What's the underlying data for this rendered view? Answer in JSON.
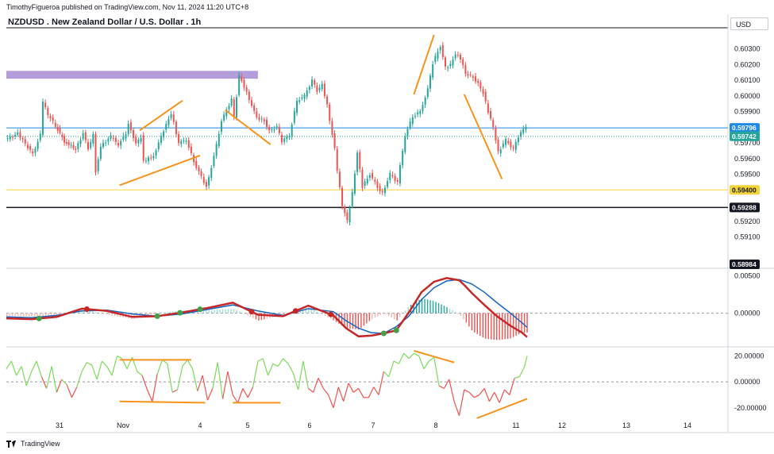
{
  "header": {
    "publisher": "TimothyFigueroa published on TradingView.com, Nov 11, 2024 11:20 UTC+8",
    "symbol_title": "NZDUSD . New Zealand Dollar / U.S. Dollar . 1h",
    "currency": "USD"
  },
  "footer": {
    "brand": "TradingView",
    "brand_icon": "tradingview-logo-icon"
  },
  "colors": {
    "up": "#26a69a",
    "down": "#ef5350",
    "annotation": "#f7931a",
    "zone": "#b39ddb",
    "yellow_line": "#f5d33b",
    "last_price": "#1e88e5",
    "signal": "#1565c0",
    "macd": "#c62828",
    "macd_rising": "#43a047",
    "osc_up": "#7cdb5a",
    "osc_down": "#ef5350"
  },
  "chart_data": [
    {
      "type": "candlestick",
      "pane": "price",
      "x_tick_labels": [
        "31",
        "Nov",
        "4",
        "5",
        "6",
        "7",
        "8",
        "11",
        "12",
        "13",
        "14"
      ],
      "y_tick_labels": [
        "0.60300",
        "0.60200",
        "0.60100",
        "0.60000",
        "0.59900",
        "0.59700",
        "0.59600",
        "0.59500",
        "0.59200",
        "0.59100"
      ],
      "ylim": [
        0.589,
        0.6043
      ],
      "price_labels": [
        {
          "text": "0.59796",
          "value": 0.59796,
          "role": "last-price"
        },
        {
          "text": "0.59742",
          "value": 0.59742,
          "role": "current"
        },
        {
          "text": "0.59400",
          "value": 0.594,
          "role": "support"
        },
        {
          "text": "0.59288",
          "value": 0.59288,
          "role": "level"
        },
        {
          "text": "0.58984",
          "value": 0.58984,
          "role": "low"
        }
      ],
      "path": [
        [
          0,
          0.5972
        ],
        [
          10,
          0.5976
        ],
        [
          22,
          0.5963
        ],
        [
          28,
          0.5975
        ],
        [
          30,
          0.5996
        ],
        [
          34,
          0.5988
        ],
        [
          40,
          0.5981
        ],
        [
          47,
          0.5971
        ],
        [
          56,
          0.5966
        ],
        [
          62,
          0.5976
        ],
        [
          66,
          0.5966
        ],
        [
          70,
          0.5975
        ],
        [
          72,
          0.5952
        ],
        [
          76,
          0.5968
        ],
        [
          84,
          0.5974
        ],
        [
          90,
          0.5969
        ],
        [
          96,
          0.5976
        ],
        [
          98,
          0.5983
        ],
        [
          104,
          0.5969
        ],
        [
          108,
          0.5974
        ],
        [
          110,
          0.5958
        ],
        [
          118,
          0.5962
        ],
        [
          128,
          0.5982
        ],
        [
          132,
          0.5989
        ],
        [
          138,
          0.597
        ],
        [
          144,
          0.5972
        ],
        [
          150,
          0.5958
        ],
        [
          160,
          0.5942
        ],
        [
          166,
          0.5961
        ],
        [
          172,
          0.5984
        ],
        [
          180,
          0.5998
        ],
        [
          182,
          0.5987
        ],
        [
          186,
          0.6013
        ],
        [
          190,
          0.6006
        ],
        [
          196,
          0.5994
        ],
        [
          200,
          0.5986
        ],
        [
          206,
          0.5984
        ],
        [
          210,
          0.5978
        ],
        [
          216,
          0.598
        ],
        [
          220,
          0.5971
        ],
        [
          226,
          0.5975
        ],
        [
          232,
          0.5997
        ],
        [
          238,
          0.6
        ],
        [
          244,
          0.601
        ],
        [
          248,
          0.6003
        ],
        [
          252,
          0.6007
        ],
        [
          256,
          0.5994
        ],
        [
          262,
          0.5966
        ],
        [
          264,
          0.5952
        ],
        [
          268,
          0.593
        ],
        [
          272,
          0.592
        ],
        [
          276,
          0.5938
        ],
        [
          280,
          0.5964
        ],
        [
          284,
          0.5942
        ],
        [
          290,
          0.595
        ],
        [
          296,
          0.5942
        ],
        [
          300,
          0.5938
        ],
        [
          306,
          0.595
        ],
        [
          312,
          0.5945
        ],
        [
          318,
          0.5975
        ],
        [
          324,
          0.5987
        ],
        [
          330,
          0.599
        ],
        [
          336,
          0.6004
        ],
        [
          340,
          0.6021
        ],
        [
          346,
          0.6032
        ],
        [
          350,
          0.6018
        ],
        [
          354,
          0.602
        ],
        [
          358,
          0.6027
        ],
        [
          362,
          0.6024
        ],
        [
          366,
          0.6014
        ],
        [
          372,
          0.6012
        ],
        [
          376,
          0.6008
        ],
        [
          380,
          0.6002
        ],
        [
          384,
          0.599
        ],
        [
          388,
          0.598
        ],
        [
          392,
          0.5964
        ],
        [
          398,
          0.5972
        ],
        [
          404,
          0.5966
        ],
        [
          408,
          0.5974
        ],
        [
          414,
          0.5981
        ]
      ],
      "annotations": [
        {
          "shape": "line",
          "from": [
            106,
            0.5978
          ],
          "to": [
            140,
            0.5997
          ]
        },
        {
          "shape": "line",
          "from": [
            90,
            0.5943
          ],
          "to": [
            154,
            0.5962
          ]
        },
        {
          "shape": "line",
          "from": [
            174,
            0.5991
          ],
          "to": [
            210,
            0.5969
          ]
        },
        {
          "shape": "line",
          "from": [
            324,
            0.6001
          ],
          "to": [
            340,
            0.6039
          ]
        },
        {
          "shape": "line",
          "from": [
            364,
            0.6001
          ],
          "to": [
            394,
            0.5947
          ]
        },
        {
          "shape": "zone",
          "from": [
            0,
            0.6011
          ],
          "to": [
            200,
            0.6016
          ]
        }
      ]
    },
    {
      "type": "line",
      "pane": "macd",
      "y_tick_labels": [
        "0.00500",
        "0.00000"
      ],
      "ylim": [
        -0.0045,
        0.006
      ],
      "series": [
        {
          "role": "macd",
          "x": [
            0,
            20,
            40,
            60,
            80,
            100,
            120,
            140,
            160,
            180,
            200,
            220,
            240,
            260,
            270,
            280,
            290,
            300,
            310,
            320,
            330,
            340,
            350,
            360,
            365,
            370,
            380,
            390,
            400,
            410,
            414
          ],
          "values": [
            -0.0007,
            -0.0008,
            -0.0005,
            0.0006,
            0.0003,
            -0.0005,
            -0.0004,
            0.0001,
            0.0007,
            0.0014,
            -0.0002,
            -0.0004,
            0.001,
            -0.0003,
            -0.002,
            -0.0031,
            -0.003,
            -0.0027,
            -0.0023,
            0.0001,
            0.0028,
            0.0042,
            0.0047,
            0.0044,
            0.0036,
            0.0027,
            0.0011,
            -0.0004,
            -0.0016,
            -0.0026,
            -0.0032
          ]
        },
        {
          "role": "signal",
          "x": [
            0,
            20,
            40,
            60,
            80,
            100,
            120,
            140,
            160,
            180,
            200,
            220,
            240,
            260,
            270,
            280,
            290,
            300,
            310,
            320,
            330,
            340,
            350,
            360,
            370,
            380,
            390,
            400,
            410,
            414
          ],
          "values": [
            -0.0005,
            -0.0006,
            -0.0003,
            0.0003,
            0.0004,
            -0.0001,
            -0.0004,
            -0.0001,
            0.0005,
            0.0011,
            0.0003,
            -0.0003,
            0.0006,
            0.0002,
            -0.001,
            -0.002,
            -0.0026,
            -0.0027,
            -0.0018,
            -0.0004,
            0.0018,
            0.0034,
            0.0043,
            0.0045,
            0.0039,
            0.0028,
            0.0014,
            0.0001,
            -0.0013,
            -0.0019
          ]
        }
      ],
      "markers_x": [
        26,
        64,
        120,
        138,
        154,
        195,
        230,
        258,
        300,
        310
      ]
    },
    {
      "type": "line",
      "pane": "oscillator",
      "y_tick_labels": [
        "20.00000",
        "0.00000",
        "-20.00000"
      ],
      "ylim": [
        -28,
        27
      ],
      "series": [
        {
          "role": "oscillator",
          "x": [
            0,
            4,
            8,
            12,
            16,
            20,
            24,
            28,
            32,
            36,
            40,
            44,
            48,
            52,
            56,
            60,
            64,
            68,
            72,
            76,
            80,
            84,
            88,
            92,
            96,
            100,
            104,
            108,
            112,
            116,
            120,
            124,
            128,
            132,
            136,
            140,
            144,
            148,
            152,
            156,
            160,
            164,
            168,
            172,
            176,
            180,
            184,
            188,
            192,
            196,
            200,
            204,
            208,
            212,
            216,
            220,
            224,
            228,
            232,
            236,
            240,
            244,
            248,
            252,
            256,
            260,
            264,
            268,
            272,
            276,
            280,
            284,
            288,
            292,
            296,
            300,
            304,
            308,
            312,
            316,
            320,
            324,
            328,
            332,
            336,
            340,
            344,
            348,
            352,
            356,
            360,
            364,
            368,
            372,
            376,
            380,
            384,
            388,
            392,
            396,
            400,
            404,
            408,
            412,
            414
          ],
          "values": [
            10,
            16,
            5,
            12,
            -3,
            8,
            16,
            4,
            -5,
            12,
            -8,
            2,
            -2,
            -12,
            -4,
            8,
            15,
            13,
            2,
            16,
            12,
            5,
            20,
            18,
            10,
            19,
            8,
            5,
            -6,
            -15,
            6,
            17,
            14,
            -8,
            -6,
            12,
            17,
            10,
            -7,
            5,
            -14,
            -5,
            15,
            -13,
            8,
            -10,
            -16,
            -5,
            -12,
            -4,
            16,
            18,
            5,
            14,
            12,
            18,
            14,
            7,
            -6,
            16,
            -5,
            -8,
            3,
            -5,
            -10,
            -20,
            -4,
            -15,
            -1,
            -8,
            -5,
            -12,
            -12,
            -4,
            -10,
            8,
            4,
            16,
            14,
            22,
            18,
            22,
            20,
            10,
            16,
            19,
            -3,
            -5,
            2,
            -15,
            -26,
            -6,
            -8,
            -12,
            -10,
            -5,
            -15,
            -8,
            -16,
            -6,
            -10,
            3,
            4,
            12,
            20
          ]
        }
      ],
      "annotations": [
        {
          "shape": "line",
          "from": [
            90,
            17
          ],
          "to": [
            147,
            17
          ]
        },
        {
          "shape": "line",
          "from": [
            90,
            -15
          ],
          "to": [
            158,
            -16
          ]
        },
        {
          "shape": "line",
          "from": [
            180,
            -16
          ],
          "to": [
            218,
            -16
          ]
        },
        {
          "shape": "line",
          "from": [
            324,
            24
          ],
          "to": [
            356,
            15
          ]
        },
        {
          "shape": "line",
          "from": [
            374,
            -28
          ],
          "to": [
            414,
            -13
          ]
        }
      ]
    }
  ]
}
